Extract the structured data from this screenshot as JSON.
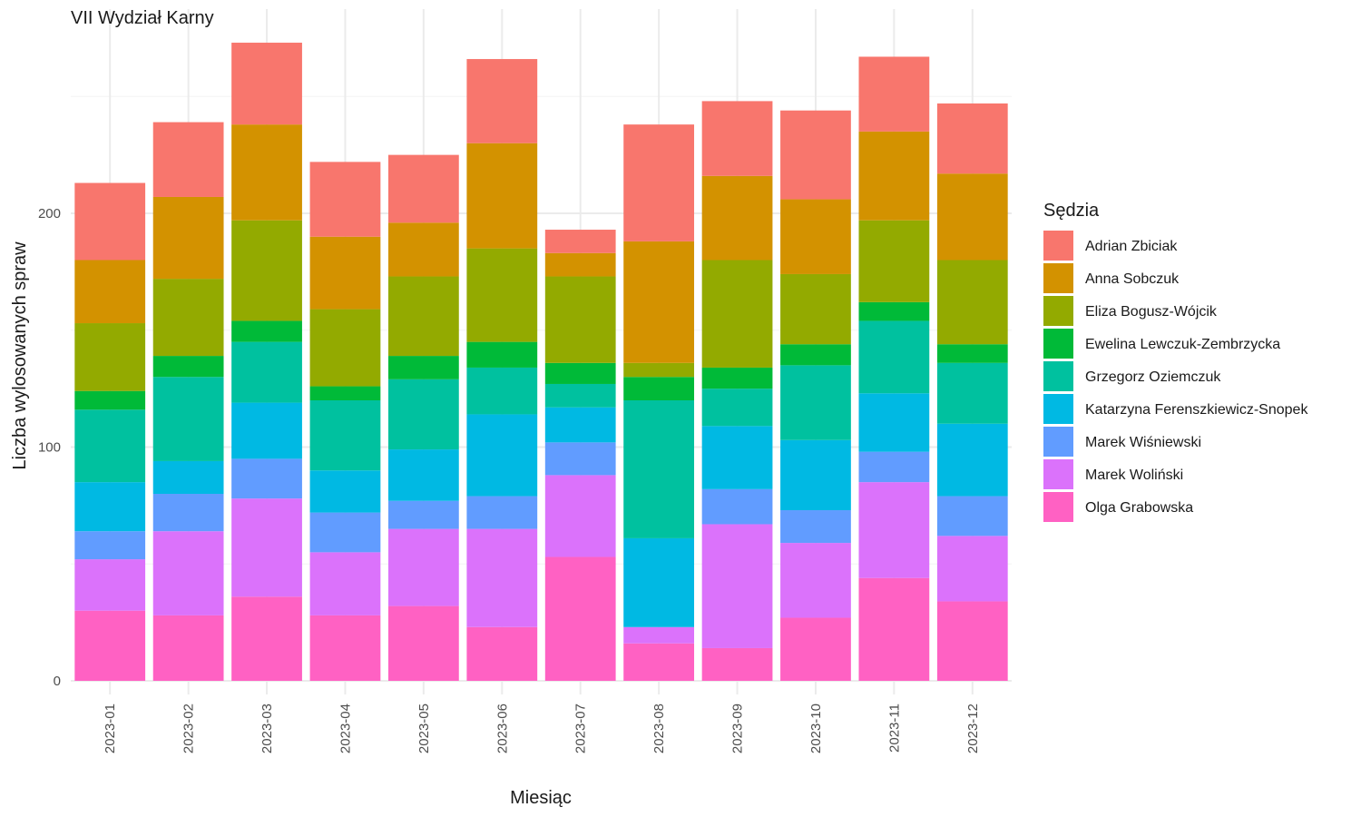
{
  "chart_data": {
    "type": "bar",
    "stacked": true,
    "title": "VII Wydział Karny",
    "xlabel": "Miesiąc",
    "ylabel": "Liczba wylosowanych spraw",
    "ylim": [
      0,
      275
    ],
    "yticks": [
      0,
      100,
      200
    ],
    "grid": true,
    "legend_title": "Sędzia",
    "legend_position": "right",
    "categories": [
      "2023-01",
      "2023-02",
      "2023-03",
      "2023-04",
      "2023-05",
      "2023-06",
      "2023-07",
      "2023-08",
      "2023-09",
      "2023-10",
      "2023-11",
      "2023-12"
    ],
    "series": [
      {
        "name": "Olga Grabowska",
        "color": "#FF61C3",
        "values": [
          30,
          28,
          36,
          28,
          32,
          23,
          53,
          16,
          14,
          27,
          44,
          34
        ]
      },
      {
        "name": "Marek Woliński",
        "color": "#DB72FB",
        "values": [
          22,
          36,
          42,
          27,
          33,
          42,
          35,
          7,
          53,
          32,
          41,
          28
        ]
      },
      {
        "name": "Marek Wiśniewski",
        "color": "#619CFF",
        "values": [
          12,
          16,
          17,
          17,
          12,
          14,
          14,
          0,
          15,
          14,
          13,
          17
        ]
      },
      {
        "name": "Katarzyna Ferenszkiewicz-Snopek",
        "color": "#00B9E3",
        "values": [
          21,
          14,
          24,
          18,
          22,
          35,
          15,
          38,
          27,
          30,
          25,
          31
        ]
      },
      {
        "name": "Grzegorz Oziemczuk",
        "color": "#00C19F",
        "values": [
          31,
          36,
          26,
          30,
          30,
          20,
          10,
          59,
          16,
          32,
          31,
          26
        ]
      },
      {
        "name": "Ewelina Lewczuk-Zembrzycka",
        "color": "#00BA38",
        "values": [
          8,
          9,
          9,
          6,
          10,
          11,
          9,
          10,
          9,
          9,
          8,
          8
        ]
      },
      {
        "name": "Eliza Bogusz-Wójcik",
        "color": "#93AA00",
        "values": [
          29,
          33,
          43,
          33,
          34,
          40,
          37,
          6,
          46,
          30,
          35,
          36
        ]
      },
      {
        "name": "Anna Sobczuk",
        "color": "#D39200",
        "values": [
          27,
          35,
          41,
          31,
          23,
          45,
          10,
          52,
          36,
          32,
          38,
          37
        ]
      },
      {
        "name": "Adrian Zbiciak",
        "color": "#F8766D",
        "values": [
          33,
          32,
          35,
          32,
          29,
          36,
          10,
          50,
          32,
          38,
          32,
          30
        ]
      }
    ],
    "legend_order": [
      "Adrian Zbiciak",
      "Anna Sobczuk",
      "Eliza Bogusz-Wójcik",
      "Ewelina Lewczuk-Zembrzycka",
      "Grzegorz Oziemczuk",
      "Katarzyna Ferenszkiewicz-Snopek",
      "Marek Wiśniewski",
      "Marek Woliński",
      "Olga Grabowska"
    ]
  }
}
